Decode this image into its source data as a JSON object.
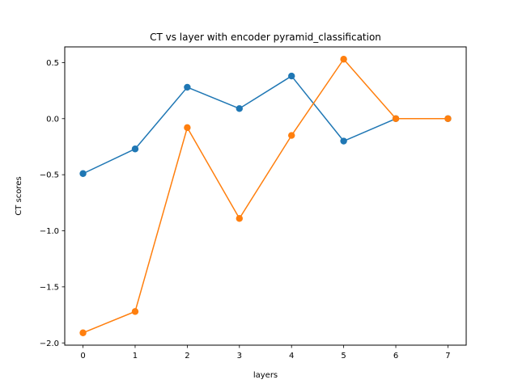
{
  "chart_data": {
    "type": "line",
    "title": "CT vs layer with encoder pyramid_classification",
    "xlabel": "layers",
    "ylabel": "CT scores",
    "x": [
      0,
      1,
      2,
      3,
      4,
      5,
      6,
      7
    ],
    "xticks": [
      "0",
      "1",
      "2",
      "3",
      "4",
      "5",
      "6",
      "7"
    ],
    "yticks": [
      "0.5",
      "0.0",
      "−0.5",
      "−1.0",
      "−1.5",
      "−2.0"
    ],
    "ytick_values": [
      0.5,
      0.0,
      -0.5,
      -1.0,
      -1.5,
      -2.0
    ],
    "xlim": [
      -0.35,
      7.35
    ],
    "ylim": [
      -2.02,
      0.64
    ],
    "grid": false,
    "series": [
      {
        "color": "#1f77b4",
        "values": [
          -0.49,
          -0.27,
          0.28,
          0.09,
          0.38,
          -0.2,
          0.0,
          0.0
        ]
      },
      {
        "color": "#ff7f0e",
        "values": [
          -1.91,
          -1.72,
          -0.08,
          -0.89,
          -0.15,
          0.53,
          0.0,
          0.0
        ]
      }
    ]
  }
}
